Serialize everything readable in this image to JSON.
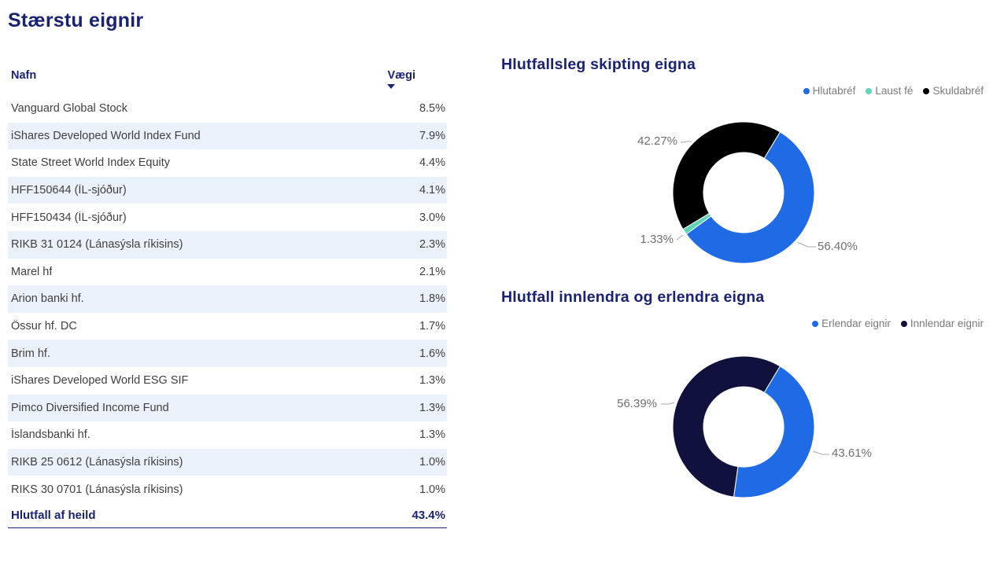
{
  "table": {
    "title": "Stærstu eignir",
    "columns": [
      "Nafn",
      "Vægi"
    ],
    "sort": {
      "column": "Vægi",
      "direction": "desc"
    },
    "rows": [
      {
        "name": "Vanguard Global Stock",
        "weight": "8.5%"
      },
      {
        "name": "iShares Developed World Index Fund",
        "weight": "7.9%"
      },
      {
        "name": "State Street World Index Equity",
        "weight": "4.4%"
      },
      {
        "name": "HFF150644 (ÍL-sjóður)",
        "weight": "4.1%"
      },
      {
        "name": "HFF150434 (ÍL-sjóður)",
        "weight": "3.0%"
      },
      {
        "name": "RIKB 31 0124 (Lánasýsla ríkisins)",
        "weight": "2.3%"
      },
      {
        "name": "Marel hf",
        "weight": "2.1%"
      },
      {
        "name": "Arion banki hf.",
        "weight": "1.8%"
      },
      {
        "name": "Össur hf. DC",
        "weight": "1.7%"
      },
      {
        "name": "Brim hf.",
        "weight": "1.6%"
      },
      {
        "name": "iShares Developed World ESG SIF",
        "weight": "1.3%"
      },
      {
        "name": "Pimco Diversified Income Fund",
        "weight": "1.3%"
      },
      {
        "name": "Íslandsbanki hf.",
        "weight": "1.3%"
      },
      {
        "name": "RIKB 25 0612 (Lánasýsla ríkisins)",
        "weight": "1.0%"
      },
      {
        "name": "RIKS 30 0701 (Lánasýsla ríkisins)",
        "weight": "1.0%"
      }
    ],
    "footer": {
      "label": "Hlutfall af heild",
      "value": "43.4%"
    }
  },
  "chart_data": [
    {
      "type": "pie",
      "subtype": "donut",
      "title": "Hlutfallsleg skipting eigna",
      "labels": [
        "Hlutabréf",
        "Laust fé",
        "Skuldabréf"
      ],
      "values": [
        56.4,
        1.33,
        42.27
      ],
      "data_labels": [
        "56.40%",
        "1.33%",
        "42.27%"
      ],
      "colors": [
        "#1F6BE6",
        "#5ED6B5",
        "#000000"
      ],
      "legend_position": "top-right"
    },
    {
      "type": "pie",
      "subtype": "donut",
      "title": "Hlutfall innlendra og erlendra eigna",
      "labels": [
        "Erlendar eignir",
        "Innlendar eignir"
      ],
      "values": [
        43.61,
        56.39
      ],
      "data_labels": [
        "43.61%",
        "56.39%"
      ],
      "colors": [
        "#1F6BE6",
        "#10123D"
      ],
      "legend_position": "top-right"
    }
  ],
  "theme": {
    "navy_text": "#1A2274",
    "row_stripe": "#EBF1FA",
    "row_text": "#404040",
    "label_gray": "#6F6F6F",
    "legend_gray": "#7A7A7A"
  }
}
